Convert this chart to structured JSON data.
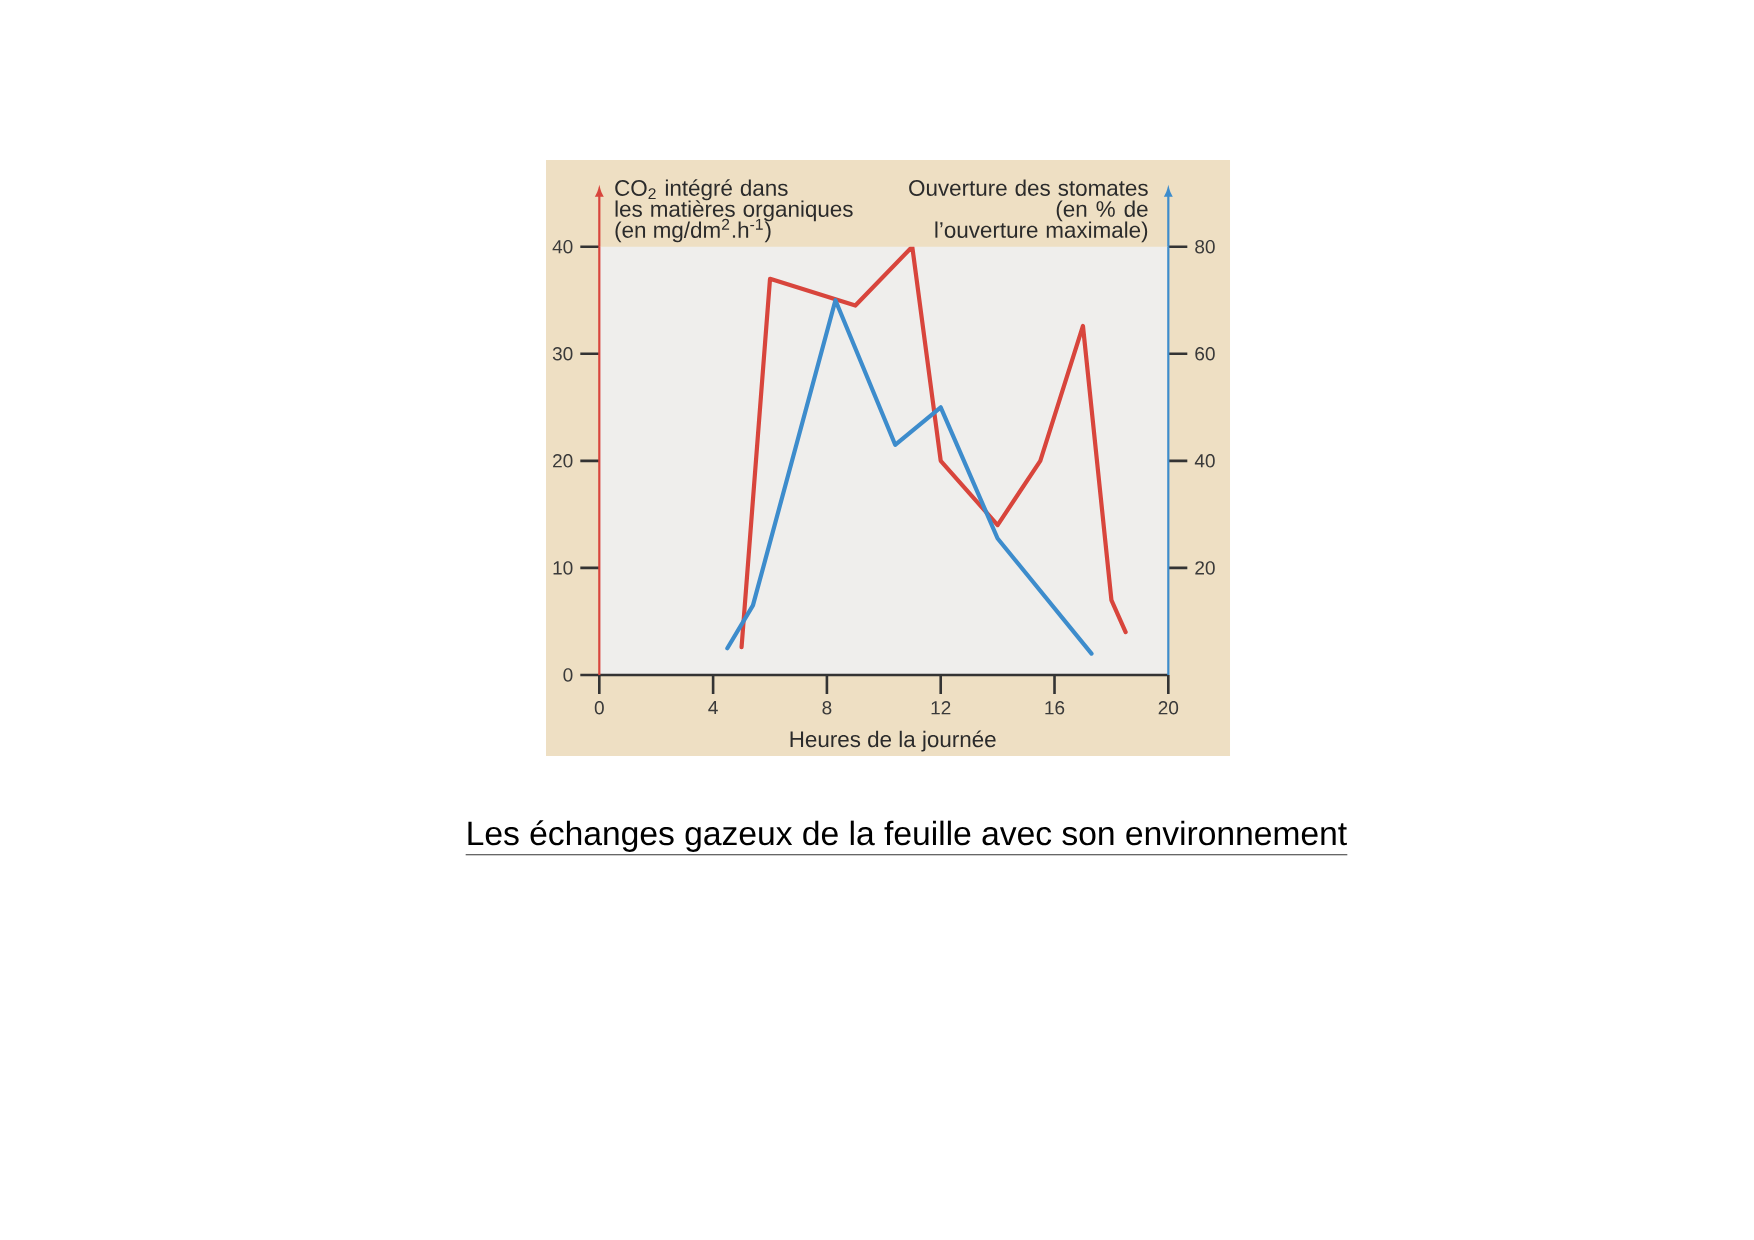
{
  "chart_data": {
    "type": "line",
    "title": "Les échanges gazeux de la feuille avec son environnement",
    "xlabel": "Heures de la journée",
    "ylabel": "CO$_{2}$ intégré dans les matières organiques (en mg/dm$^{2}$.h$^{-1}$)",
    "y2label": "Ouverture des stomates (en % de l’ouverture maximale)",
    "xlim": [
      0,
      20
    ],
    "xticks": [
      0,
      4,
      8,
      12,
      16,
      20
    ],
    "ylim": [
      0,
      40
    ],
    "yticks": [
      0,
      10,
      20,
      30,
      40
    ],
    "y2lim": [
      0,
      80
    ],
    "y2ticks": [
      20,
      40,
      60,
      80
    ],
    "series": [
      {
        "color": "#d8453c",
        "x": [
          5,
          6,
          9,
          11,
          12,
          14,
          15.5,
          17,
          18,
          18.5
        ],
        "values": [
          2.6,
          37,
          34.5,
          40,
          20,
          14,
          20,
          32.6,
          7,
          4
        ]
      },
      {
        "color": "#3d8ccc",
        "axis": "y2",
        "x": [
          4.5,
          5.4,
          8.3,
          10.4,
          12,
          14,
          17.3
        ],
        "values": [
          5,
          13,
          70,
          43,
          50,
          25.5,
          4
        ]
      }
    ]
  }
}
